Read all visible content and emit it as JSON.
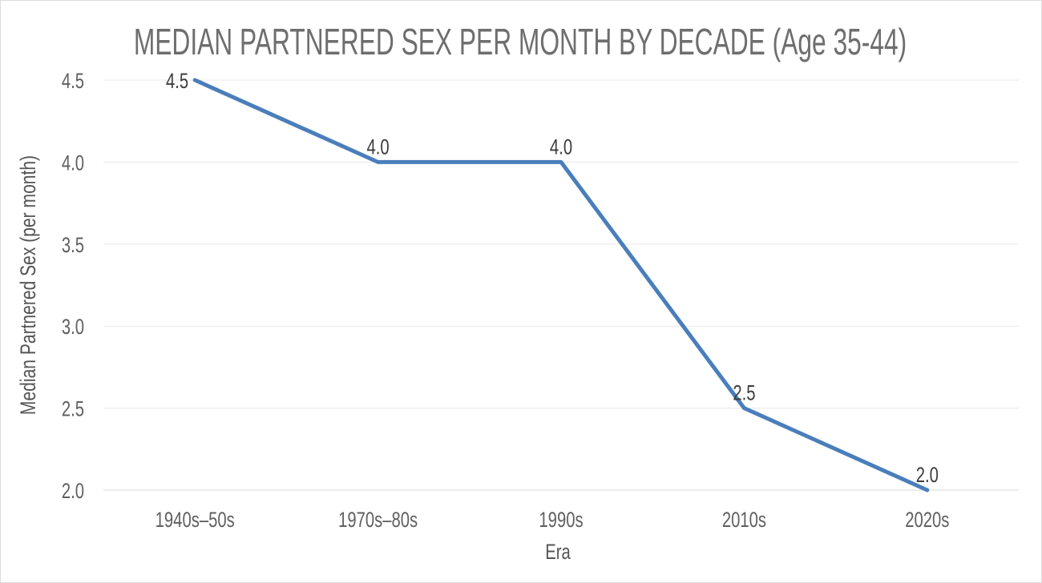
{
  "chart_data": {
    "type": "line",
    "title": "MEDIAN PARTNERED SEX PER MONTH BY DECADE (Age 35-44)",
    "xlabel": "Era",
    "ylabel": "Median Partnered Sex (per month)",
    "categories": [
      "1940s–50s",
      "1970s–80s",
      "1990s",
      "2010s",
      "2020s"
    ],
    "values": [
      4.5,
      4.0,
      4.0,
      2.5,
      2.0
    ],
    "data_labels": [
      "4.5",
      "4.0",
      "4.0",
      "2.5",
      "2.0"
    ],
    "y_tick_values": [
      4.5,
      4.0,
      3.5,
      3.0,
      2.5,
      2.0
    ],
    "y_tick_labels": [
      "4.5",
      "4.0",
      "3.5",
      "3.0",
      "2.5",
      "2.0"
    ],
    "ylim": [
      2.0,
      4.5
    ],
    "grid": "horizontal",
    "legend_position": "none",
    "colors": {
      "line": "#4a7ebb",
      "gridline": "#e9e9e9",
      "axis_line": "#d9d9d9",
      "title_text": "#6e6e6e",
      "axis_title_text": "#555555",
      "tick_text": "#5f5f5f",
      "data_label_text": "#3c3c3c",
      "background": "#ffffff",
      "border": "#dcdcdc"
    }
  }
}
